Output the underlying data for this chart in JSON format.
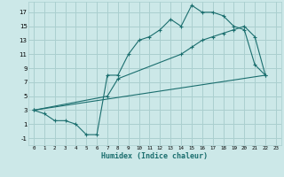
{
  "xlabel": "Humidex (Indice chaleur)",
  "bg_color": "#cce8e8",
  "grid_color": "#aacfcf",
  "line_color": "#1a6e6e",
  "xlim": [
    -0.5,
    23.5
  ],
  "ylim": [
    -2,
    18.5
  ],
  "xticks": [
    0,
    1,
    2,
    3,
    4,
    5,
    6,
    7,
    8,
    9,
    10,
    11,
    12,
    13,
    14,
    15,
    16,
    17,
    18,
    19,
    20,
    21,
    22,
    23
  ],
  "yticks": [
    -1,
    1,
    3,
    5,
    7,
    9,
    11,
    13,
    15,
    17
  ],
  "line1_x": [
    0,
    1,
    2,
    3,
    4,
    5,
    6,
    7,
    8,
    9,
    10,
    11,
    12,
    13,
    14,
    15,
    16,
    17,
    18,
    19,
    20,
    21,
    22
  ],
  "line1_y": [
    3,
    2.5,
    1.5,
    1.5,
    1,
    -0.5,
    -0.5,
    8,
    8,
    11,
    13,
    13.5,
    14.5,
    16,
    15,
    18,
    17,
    17,
    16.5,
    15,
    14.5,
    9.5,
    8
  ],
  "line2_x": [
    0,
    7,
    8,
    14,
    15,
    16,
    17,
    18,
    19,
    20,
    21,
    22
  ],
  "line2_y": [
    3,
    5,
    7.5,
    11,
    12,
    13,
    13.5,
    14,
    14.5,
    15,
    13.5,
    8
  ],
  "line3_x": [
    0,
    22
  ],
  "line3_y": [
    3,
    8
  ],
  "tick_fontsize": 5,
  "xlabel_fontsize": 6
}
